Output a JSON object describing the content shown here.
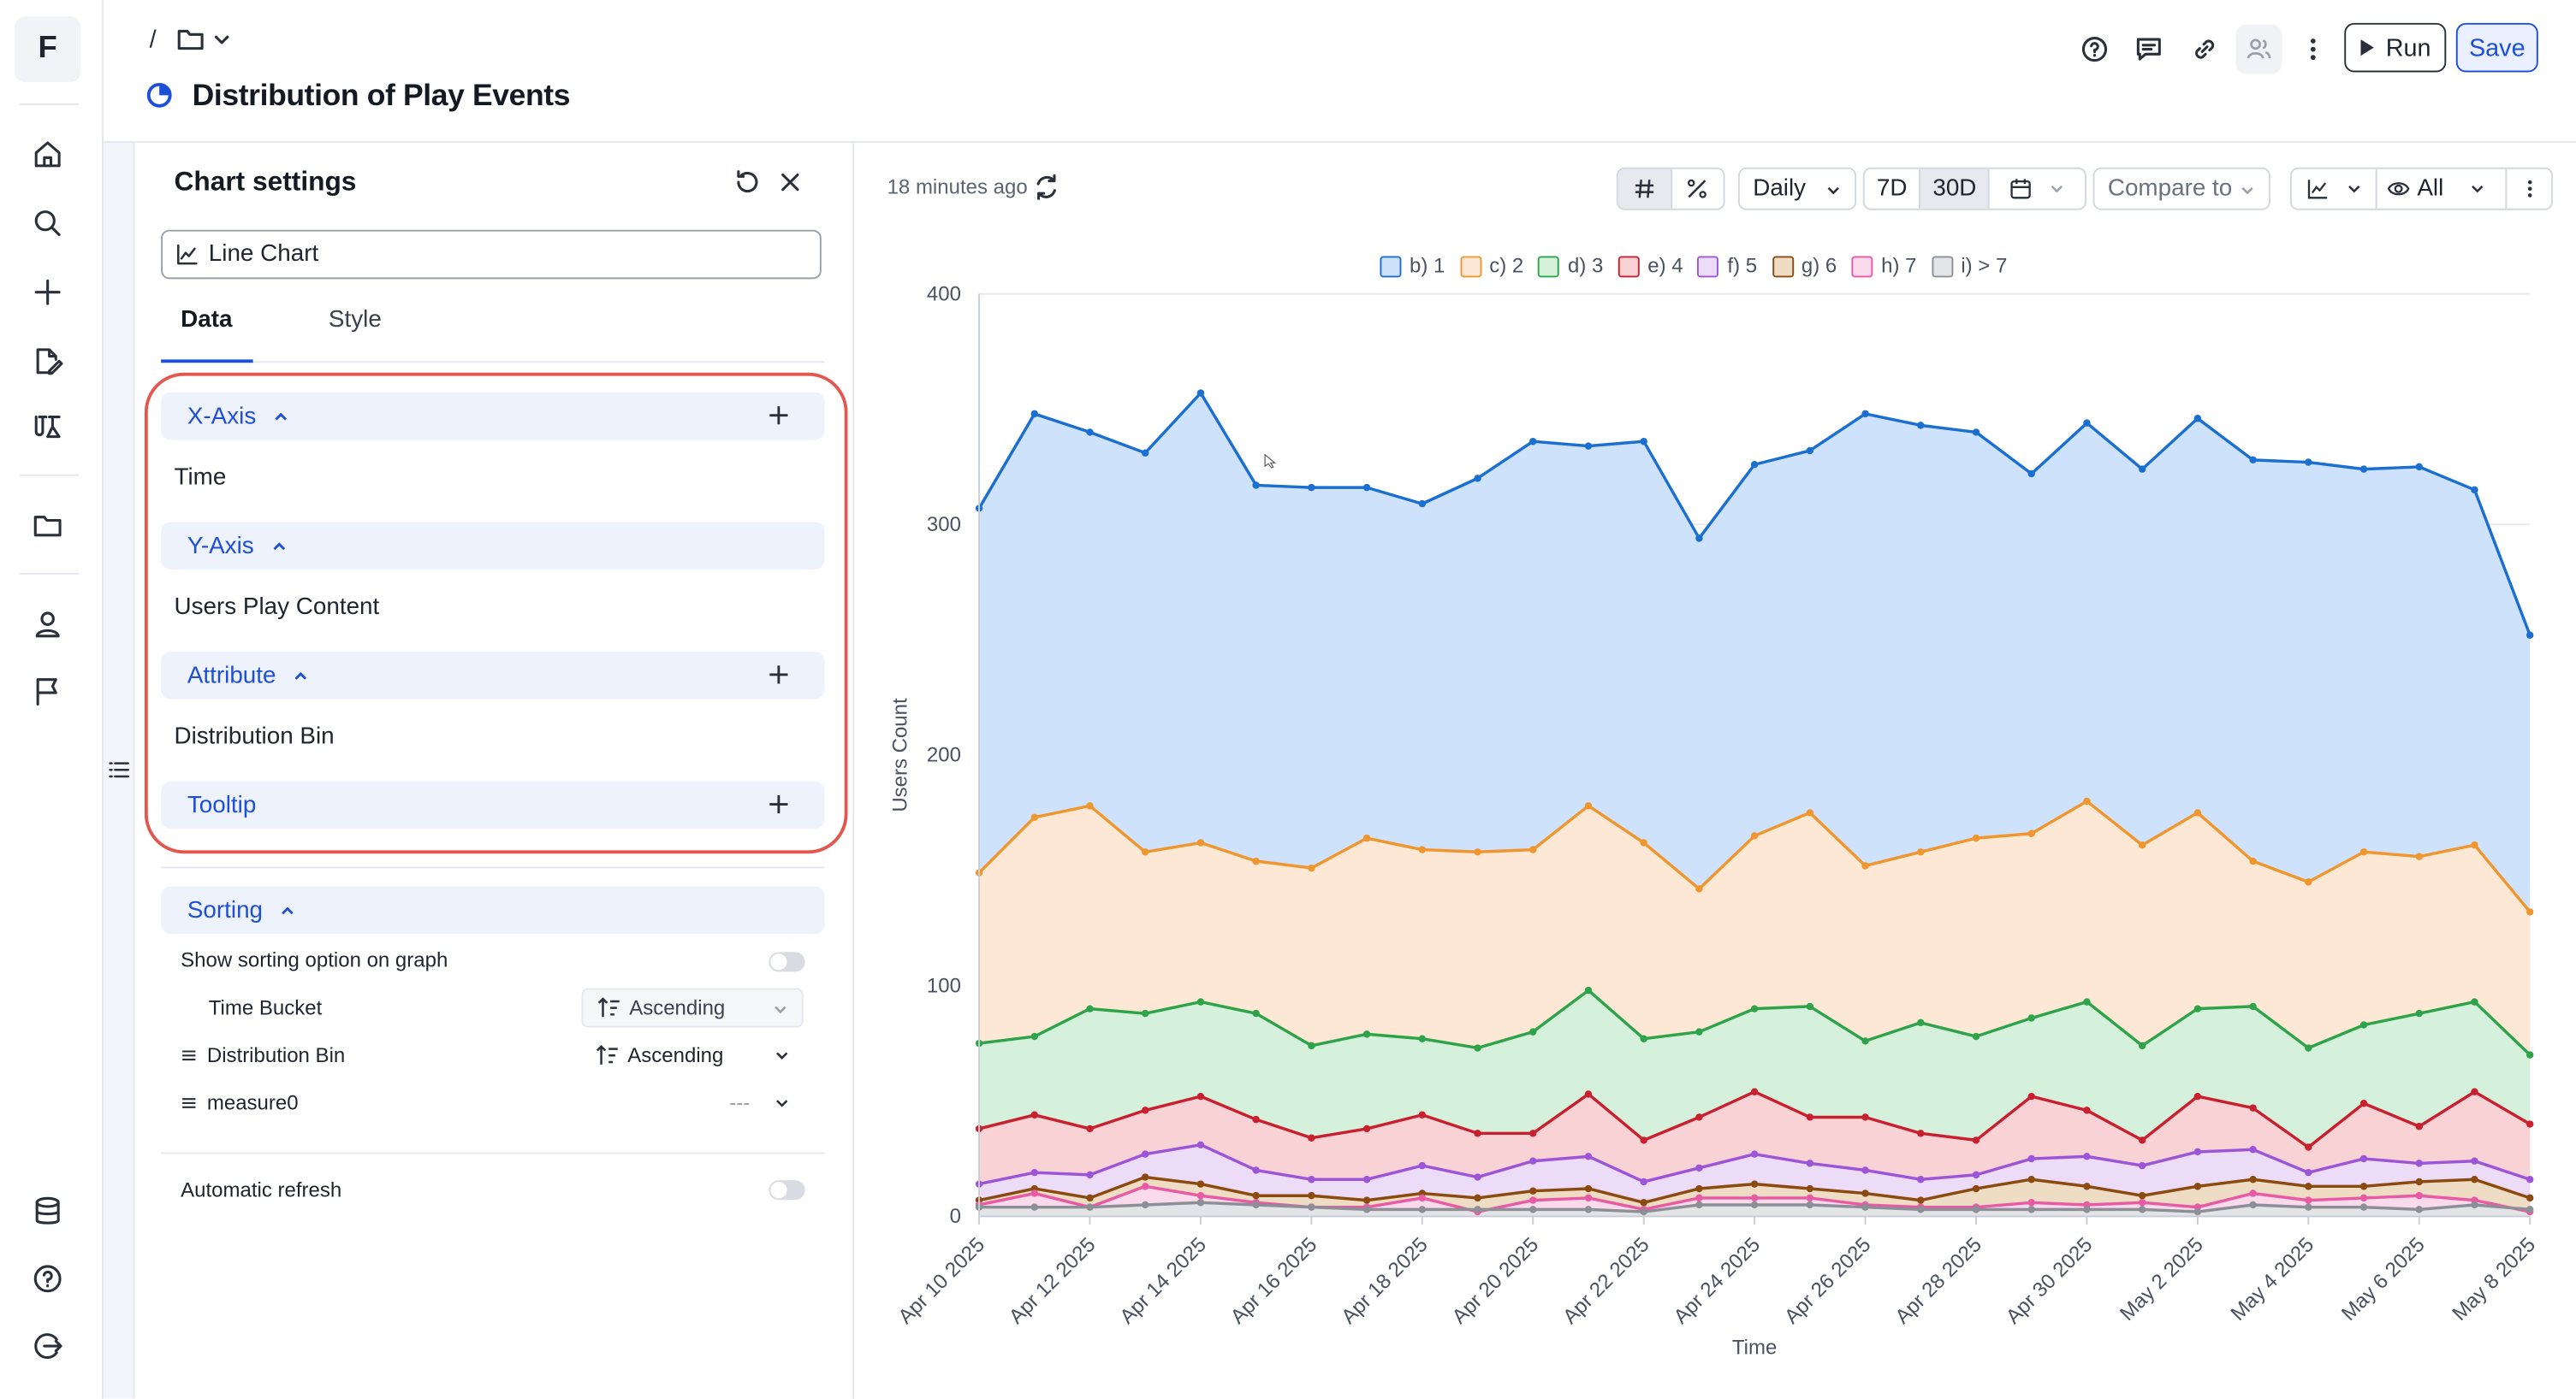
{
  "app": {
    "logo_letter": "F"
  },
  "header": {
    "breadcrumb_sep": "/",
    "title": "Distribution of Play Events",
    "run_label": "Run",
    "save_label": "Save"
  },
  "settings": {
    "title": "Chart settings",
    "chart_type": "Line Chart",
    "tabs": [
      "Data",
      "Style"
    ],
    "sections": {
      "x_axis": {
        "label": "X-Axis",
        "value": "Time"
      },
      "y_axis": {
        "label": "Y-Axis",
        "value": "Users Play Content"
      },
      "attribute": {
        "label": "Attribute",
        "value": "Distribution Bin"
      },
      "tooltip": {
        "label": "Tooltip"
      }
    },
    "sorting": {
      "label": "Sorting",
      "show_option_label": "Show sorting option on graph",
      "rows": [
        {
          "name": "Time Bucket",
          "order": "Ascending"
        },
        {
          "name": "Distribution Bin",
          "order": "Ascending"
        },
        {
          "name": "measure0",
          "order": "---"
        }
      ]
    },
    "auto_refresh_label": "Automatic refresh"
  },
  "toolbar": {
    "updated": "18 minutes ago",
    "granularity": "Daily",
    "range_7d": "7D",
    "range_30d": "30D",
    "compare": "Compare to",
    "visibility": "All"
  },
  "colors": {
    "accent": "#1d4fd8",
    "highlight_box": "#e4574e"
  },
  "chart_data": {
    "type": "area",
    "ylabel": "Users Count",
    "xlabel": "Time",
    "ylim": [
      0,
      400
    ],
    "yticks": [
      0,
      100,
      200,
      300,
      400
    ],
    "grid": true,
    "legend_position": "top",
    "x": [
      "Apr 10 2025",
      "Apr 11 2025",
      "Apr 12 2025",
      "Apr 13 2025",
      "Apr 14 2025",
      "Apr 15 2025",
      "Apr 16 2025",
      "Apr 17 2025",
      "Apr 18 2025",
      "Apr 19 2025",
      "Apr 20 2025",
      "Apr 21 2025",
      "Apr 22 2025",
      "Apr 23 2025",
      "Apr 24 2025",
      "Apr 25 2025",
      "Apr 26 2025",
      "Apr 27 2025",
      "Apr 28 2025",
      "Apr 29 2025",
      "Apr 30 2025",
      "May 1 2025",
      "May 2 2025",
      "May 3 2025",
      "May 4 2025",
      "May 5 2025",
      "May 6 2025",
      "May 7 2025",
      "May 8 2025"
    ],
    "x_tick_labels": [
      "Apr 10 2025",
      "Apr 12 2025",
      "Apr 14 2025",
      "Apr 16 2025",
      "Apr 18 2025",
      "Apr 20 2025",
      "Apr 22 2025",
      "Apr 24 2025",
      "Apr 26 2025",
      "Apr 28 2025",
      "Apr 30 2025",
      "May 2 2025",
      "May 4 2025",
      "May 6 2025",
      "May 8 2025"
    ],
    "series": [
      {
        "name": "b) 1",
        "color": "#1a6fd0",
        "fill": "#cfe2fb",
        "values": [
          307,
          348,
          340,
          331,
          357,
          317,
          316,
          316,
          309,
          320,
          336,
          334,
          336,
          294,
          326,
          332,
          348,
          343,
          340,
          322,
          344,
          324,
          346,
          328,
          327,
          324,
          325,
          315,
          252
        ]
      },
      {
        "name": "c) 2",
        "color": "#f0962e",
        "fill": "#fde8d6",
        "values": [
          149,
          173,
          178,
          158,
          162,
          154,
          151,
          164,
          159,
          158,
          159,
          178,
          162,
          142,
          165,
          175,
          152,
          158,
          164,
          166,
          180,
          161,
          175,
          154,
          145,
          158,
          156,
          161,
          132
        ]
      },
      {
        "name": "d) 3",
        "color": "#2ea34a",
        "fill": "#d5f1dc",
        "values": [
          75,
          78,
          90,
          88,
          93,
          88,
          74,
          79,
          77,
          73,
          80,
          98,
          77,
          80,
          90,
          91,
          76,
          84,
          78,
          86,
          93,
          74,
          90,
          91,
          73,
          83,
          88,
          93,
          70
        ]
      },
      {
        "name": "e) 4",
        "color": "#c8202f",
        "fill": "#f9d2d6",
        "values": [
          38,
          44,
          38,
          46,
          52,
          42,
          34,
          38,
          44,
          36,
          36,
          53,
          33,
          43,
          54,
          43,
          43,
          36,
          33,
          52,
          46,
          33,
          52,
          47,
          30,
          49,
          39,
          54,
          40
        ]
      },
      {
        "name": "f) 5",
        "color": "#9b55d6",
        "fill": "#ecdcf8",
        "values": [
          14,
          19,
          18,
          27,
          31,
          20,
          16,
          16,
          22,
          17,
          24,
          26,
          15,
          21,
          27,
          23,
          20,
          16,
          18,
          25,
          26,
          22,
          28,
          29,
          19,
          25,
          23,
          24,
          16
        ]
      },
      {
        "name": "g) 6",
        "color": "#8a4a10",
        "fill": "#efdcc4",
        "values": [
          7,
          12,
          8,
          17,
          14,
          9,
          9,
          7,
          10,
          8,
          11,
          12,
          6,
          12,
          14,
          12,
          10,
          7,
          12,
          16,
          13,
          9,
          13,
          16,
          13,
          13,
          15,
          16,
          8
        ]
      },
      {
        "name": "h) 7",
        "color": "#e85aa4",
        "fill": "#fbdaeb",
        "values": [
          5,
          10,
          4,
          13,
          9,
          6,
          4,
          4,
          8,
          2,
          7,
          8,
          3,
          8,
          8,
          8,
          5,
          4,
          4,
          6,
          5,
          6,
          4,
          10,
          7,
          8,
          9,
          7,
          2
        ]
      },
      {
        "name": "i) > 7",
        "color": "#8c8f96",
        "fill": "#e3e4e7",
        "values": [
          4,
          4,
          4,
          5,
          6,
          5,
          4,
          3,
          3,
          3,
          3,
          3,
          2,
          5,
          5,
          5,
          4,
          3,
          3,
          3,
          3,
          3,
          2,
          5,
          4,
          4,
          3,
          5,
          3
        ]
      }
    ]
  }
}
